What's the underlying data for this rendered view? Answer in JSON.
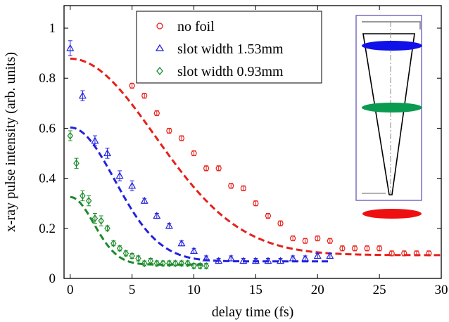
{
  "colors": {
    "no_foil": "#e8201a",
    "slot_153": "#2222dd",
    "slot_093": "#1a8a2a",
    "inset_frame": "#6655bb",
    "inset_top_line": "#999999",
    "inset_green": "#0a9a50"
  },
  "chart_data": {
    "type": "scatter",
    "xlabel": "delay time (fs)",
    "ylabel": "x-ray pulse intensity (arb. units)",
    "xlim": [
      -0.5,
      30
    ],
    "ylim": [
      0,
      1.09
    ],
    "x_ticks": [
      0,
      5,
      10,
      15,
      20,
      25,
      30
    ],
    "y_ticks": [
      0,
      0.2,
      0.4,
      0.6,
      0.8,
      1
    ],
    "y_tick_labels": [
      "0",
      "0.2",
      "0.4",
      "0.6",
      "0.8",
      "1"
    ],
    "grid": false,
    "legend_position": "top-center",
    "series": [
      {
        "name": "no foil",
        "marker": "circle",
        "color": "#e8201a",
        "x": [
          5,
          6,
          7,
          8,
          9,
          10,
          11,
          12,
          13,
          14,
          15,
          16,
          17,
          18,
          19,
          20,
          21,
          22,
          23,
          24,
          25,
          26,
          27,
          28,
          29
        ],
        "y": [
          0.77,
          0.73,
          0.66,
          0.59,
          0.56,
          0.5,
          0.44,
          0.44,
          0.37,
          0.36,
          0.3,
          0.25,
          0.22,
          0.16,
          0.15,
          0.16,
          0.15,
          0.12,
          0.12,
          0.12,
          0.12,
          0.1,
          0.1,
          0.1,
          0.1
        ],
        "err": [
          0.01,
          0.01,
          0.01,
          0.01,
          0.01,
          0.01,
          0.01,
          0.01,
          0.01,
          0.01,
          0.01,
          0.01,
          0.01,
          0.01,
          0.01,
          0.01,
          0.01,
          0.01,
          0.01,
          0.01,
          0.01,
          0.01,
          0.01,
          0.01,
          0.01
        ],
        "fit": {
          "amplitude": 0.785,
          "offset": 0.093,
          "center": 0,
          "width": 9.7
        }
      },
      {
        "name": "slot width 1.53mm",
        "marker": "triangle",
        "color": "#2222dd",
        "x": [
          0,
          1,
          2,
          3,
          4,
          5,
          6,
          7,
          8,
          9,
          10,
          11,
          12,
          13,
          14,
          15,
          16,
          17,
          18,
          19,
          20,
          21
        ],
        "y": [
          0.92,
          0.73,
          0.55,
          0.5,
          0.41,
          0.37,
          0.31,
          0.25,
          0.21,
          0.14,
          0.11,
          0.08,
          0.07,
          0.08,
          0.07,
          0.07,
          0.07,
          0.07,
          0.08,
          0.08,
          0.09,
          0.09
        ],
        "err": [
          0.03,
          0.02,
          0.02,
          0.02,
          0.02,
          0.02,
          0.01,
          0.01,
          0.01,
          0.01,
          0.01,
          0.01,
          0.01,
          0.01,
          0.01,
          0.01,
          0.01,
          0.01,
          0.01,
          0.01,
          0.01,
          0.01
        ],
        "fit": {
          "amplitude": 0.535,
          "offset": 0.068,
          "center": 0,
          "width": 5.1
        }
      },
      {
        "name": "slot width 0.93mm",
        "marker": "diamond",
        "color": "#1a8a2a",
        "x": [
          0,
          0.5,
          1,
          1.5,
          2,
          2.5,
          3,
          3.5,
          4,
          4.5,
          5,
          5.5,
          6,
          6.5,
          7,
          7.5,
          8,
          8.5,
          9,
          9.5,
          10,
          10.5,
          11
        ],
        "y": [
          0.57,
          0.46,
          0.33,
          0.31,
          0.24,
          0.23,
          0.2,
          0.14,
          0.12,
          0.1,
          0.09,
          0.08,
          0.06,
          0.07,
          0.06,
          0.06,
          0.06,
          0.06,
          0.06,
          0.06,
          0.05,
          0.05,
          0.05
        ],
        "err": [
          0.02,
          0.02,
          0.02,
          0.02,
          0.02,
          0.02,
          0.01,
          0.01,
          0.01,
          0.01,
          0.01,
          0.01,
          0.01,
          0.01,
          0.01,
          0.01,
          0.01,
          0.01,
          0.01,
          0.01,
          0.01,
          0.01,
          0.01
        ],
        "fit": {
          "amplitude": 0.27,
          "offset": 0.055,
          "center": 0,
          "width": 2.7
        }
      }
    ]
  }
}
